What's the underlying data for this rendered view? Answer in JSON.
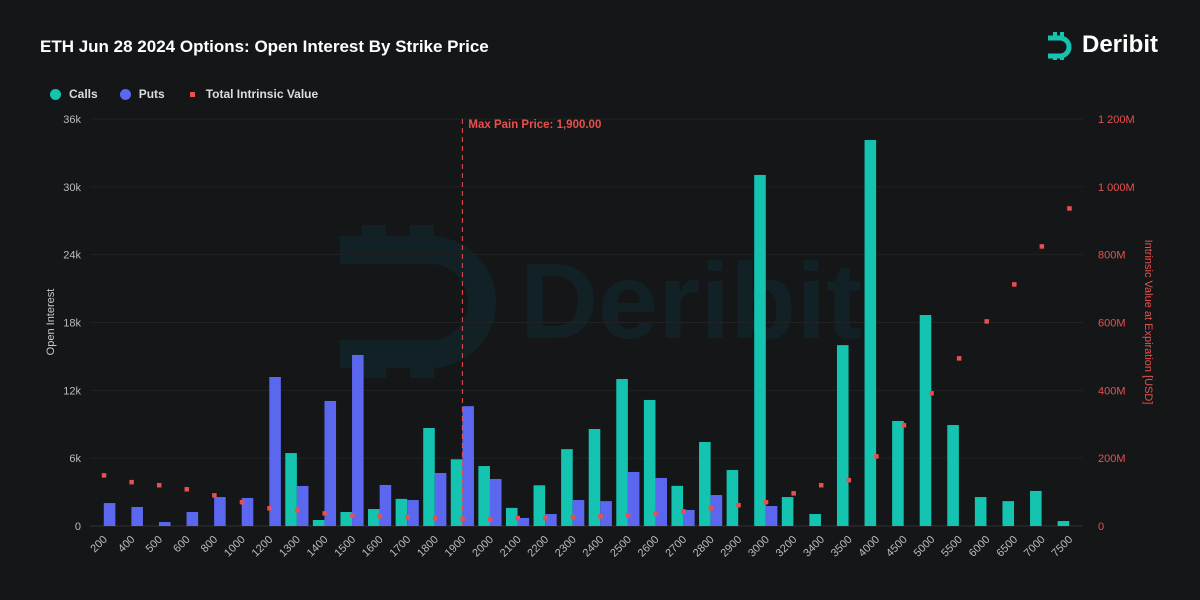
{
  "title": "ETH Jun 28 2024 Options: Open Interest By Strike Price",
  "logo_text": "Deribit",
  "watermark_text": "Deribit",
  "legend": {
    "calls": "Calls",
    "puts": "Puts",
    "intrinsic": "Total Intrinsic Value"
  },
  "colors": {
    "calls": "#14c4b0",
    "puts": "#5b67ee",
    "intrinsic": "#e8504f",
    "max_pain": "#e8504f"
  },
  "chart_data": {
    "type": "bar",
    "categories": [
      "200",
      "400",
      "500",
      "600",
      "800",
      "1000",
      "1200",
      "1300",
      "1400",
      "1500",
      "1600",
      "1700",
      "1800",
      "1900",
      "2000",
      "2100",
      "2200",
      "2300",
      "2400",
      "2500",
      "2600",
      "2700",
      "2800",
      "2900",
      "3000",
      "3200",
      "3400",
      "3500",
      "4000",
      "4500",
      "5000",
      "5500",
      "6000",
      "6500",
      "7000",
      "7500"
    ],
    "series": [
      {
        "name": "Calls",
        "type": "bar",
        "axis": "left",
        "values": [
          0,
          0,
          0,
          0,
          0,
          0,
          0,
          6450,
          530,
          1240,
          1500,
          2400,
          8670,
          5900,
          5300,
          1600,
          3600,
          6800,
          8580,
          13000,
          11150,
          3550,
          7430,
          4950,
          31050,
          2560,
          1060,
          16000,
          34140,
          9290,
          18660,
          8930,
          2560,
          2200,
          3100,
          440
        ]
      },
      {
        "name": "Puts",
        "type": "bar",
        "axis": "left",
        "values": [
          2030,
          1680,
          350,
          1240,
          2560,
          2480,
          13180,
          3540,
          11060,
          15130,
          3630,
          2300,
          4690,
          10600,
          4160,
          710,
          1060,
          2300,
          2200,
          4780,
          4250,
          1420,
          2740,
          0,
          1770,
          0,
          0,
          0,
          0,
          0,
          0,
          0,
          0,
          0,
          0,
          0
        ]
      },
      {
        "name": "Total Intrinsic Value",
        "type": "scatter",
        "axis": "right",
        "values": [
          150,
          130,
          121,
          109,
          91,
          71,
          53,
          47,
          38,
          32,
          29,
          27,
          24,
          21,
          21,
          24,
          24,
          27,
          29,
          32,
          38,
          44,
          53,
          62,
          71,
          97,
          121,
          136,
          206,
          298,
          392,
          495,
          604,
          713,
          825,
          937
        ]
      }
    ],
    "ylabel": "Open Interest",
    "y2label": "Intrinsic Value at Expiration [USD]",
    "ylim": [
      0,
      36000
    ],
    "y2lim": [
      0,
      1200
    ],
    "yticks": [
      "0",
      "6k",
      "12k",
      "18k",
      "24k",
      "30k",
      "36k"
    ],
    "y2ticks": [
      "0",
      "200M",
      "400M",
      "600M",
      "800M",
      "1 000M",
      "1 200M"
    ],
    "grid": true,
    "legend_position": "top-left",
    "annotation": {
      "label": "Max Pain Price: 1,900.00",
      "category": "1900"
    }
  }
}
